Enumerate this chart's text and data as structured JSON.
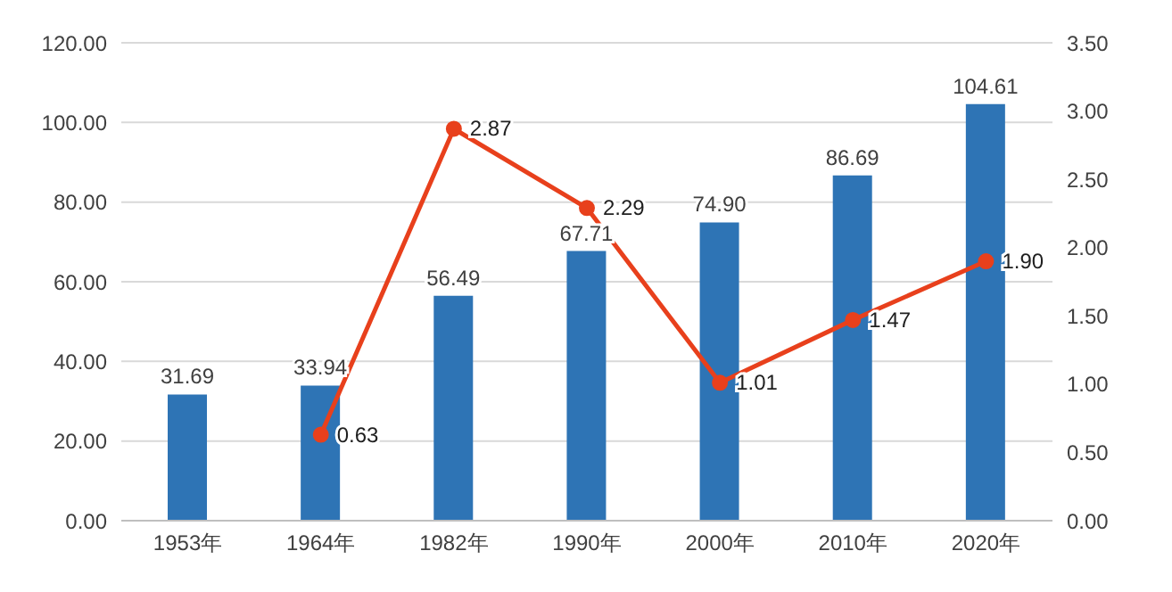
{
  "chart_data": {
    "type": "bar",
    "categories": [
      "1953年",
      "1964年",
      "1982年",
      "1990年",
      "2000年",
      "2010年",
      "2020年"
    ],
    "series": [
      {
        "color": "#2e74b5",
        "values": [
          31.69,
          33.94,
          56.49,
          67.71,
          74.9,
          86.69,
          104.61
        ],
        "value_labels": [
          "31.69",
          "33.94",
          "56.49",
          "67.71",
          "74.90",
          "86.69",
          "104.61"
        ]
      },
      {
        "type": "line",
        "axis": "y2",
        "color": "#e8401c",
        "values": [
          null,
          0.63,
          2.87,
          2.29,
          1.01,
          1.47,
          1.9
        ],
        "value_labels": [
          null,
          "0.63",
          "2.87",
          "2.29",
          "1.01",
          "1.47",
          "1.90"
        ]
      }
    ],
    "ylim": [
      0,
      120
    ],
    "yticks": [
      {
        "value": 0,
        "label": "0.00"
      },
      {
        "value": 20,
        "label": "20.00"
      },
      {
        "value": 40,
        "label": "40.00"
      },
      {
        "value": 60,
        "label": "60.00"
      },
      {
        "value": 80,
        "label": "80.00"
      },
      {
        "value": 100,
        "label": "100.00"
      },
      {
        "value": 120,
        "label": "120.00"
      }
    ],
    "y2lim": [
      0,
      3.5
    ],
    "y2ticks": [
      {
        "value": 0,
        "label": "0.00"
      },
      {
        "value": 0.5,
        "label": "0.50"
      },
      {
        "value": 1,
        "label": "1.00"
      },
      {
        "value": 1.5,
        "label": "1.50"
      },
      {
        "value": 2,
        "label": "2.00"
      },
      {
        "value": 2.5,
        "label": "2.50"
      },
      {
        "value": 3,
        "label": "3.00"
      },
      {
        "value": 3.5,
        "label": "3.50"
      }
    ],
    "grid": "y",
    "marker": "circle",
    "line_style": "solid",
    "legend": false
  }
}
